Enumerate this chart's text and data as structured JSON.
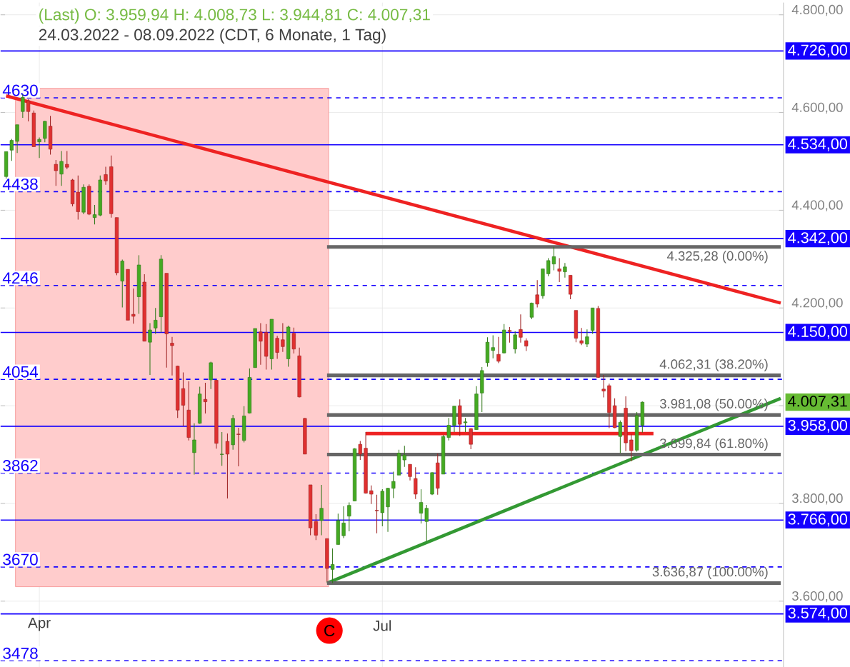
{
  "chart_data": {
    "type": "candlestick",
    "title": "(Last)  O: 3.959,94  H: 4.008,73  L: 3.944,81  C: 4.007,31",
    "subtitle": "24.03.2022 - 08.09.2022   (CDT, 6 Monate, 1 Tag)",
    "categories": [
      null,
      null,
      null,
      null,
      null,
      null,
      "Apr",
      null,
      null,
      null,
      null,
      null,
      null,
      null,
      null,
      null,
      null,
      null,
      null,
      null,
      null,
      null,
      null,
      null,
      null,
      null,
      null,
      null,
      null,
      null,
      null,
      null,
      null,
      null,
      null,
      null,
      null,
      null,
      null,
      null,
      null,
      null,
      null,
      null,
      null,
      null,
      null,
      null,
      null,
      null,
      null,
      null,
      null,
      null,
      null,
      null,
      null,
      null,
      null,
      null,
      null,
      null,
      null,
      null,
      null,
      null,
      null,
      null,
      "Jul",
      null,
      null,
      null,
      null,
      null,
      null,
      null,
      null,
      null,
      null,
      null,
      null,
      null,
      null,
      null,
      null,
      null,
      null,
      null,
      null,
      null,
      null,
      null,
      null,
      null,
      null,
      null,
      null,
      null,
      null,
      null,
      null,
      null,
      null,
      null,
      null,
      null,
      null,
      null,
      null,
      null,
      null,
      null,
      null,
      null,
      null,
      null,
      null,
      null,
      null,
      null,
      null,
      null,
      null,
      null,
      null,
      null,
      null,
      null,
      null,
      null,
      null,
      null,
      null,
      null,
      null,
      null,
      null,
      null,
      null,
      null,
      null
    ],
    "ohlc": [
      [
        4469,
        4520,
        4465,
        4520
      ],
      [
        4523,
        4546,
        4501,
        4543
      ],
      [
        4541,
        4575,
        4517,
        4575
      ],
      [
        4602,
        4637,
        4589,
        4631
      ],
      [
        4624,
        4627,
        4582,
        4602
      ],
      [
        4599,
        4604,
        4530,
        4530
      ],
      [
        4540,
        4549,
        4507,
        4545
      ],
      [
        4547,
        4583,
        4539,
        4582
      ],
      [
        4572,
        4593,
        4514,
        4525
      ],
      [
        4494,
        4503,
        4450,
        4481
      ],
      [
        4474,
        4521,
        4450,
        4500
      ],
      [
        4494,
        4521,
        4484,
        4488
      ],
      [
        4462,
        4464,
        4408,
        4413
      ],
      [
        4437,
        4471,
        4381,
        4397
      ],
      [
        4396,
        4453,
        4392,
        4447
      ],
      [
        4449,
        4453,
        4390,
        4392
      ],
      [
        4385,
        4411,
        4371,
        4391
      ],
      [
        4390,
        4471,
        4388,
        4462
      ],
      [
        4473,
        4489,
        4452,
        4460
      ],
      [
        4489,
        4512,
        4385,
        4393
      ],
      [
        4385,
        4385,
        4267,
        4272
      ],
      [
        4255,
        4299,
        4201,
        4296
      ],
      [
        4279,
        4279,
        4175,
        4175
      ],
      [
        4187,
        4240,
        4168,
        4183
      ],
      [
        4223,
        4308,
        4188,
        4288
      ],
      [
        4253,
        4269,
        4132,
        4132
      ],
      [
        4130,
        4169,
        4063,
        4155
      ],
      [
        4159,
        4200,
        4147,
        4175
      ],
      [
        4182,
        4308,
        4150,
        4300
      ],
      [
        4271,
        4271,
        4078,
        4147
      ],
      [
        4128,
        4141,
        4062,
        4123
      ],
      [
        4081,
        4082,
        3975,
        3991
      ],
      [
        4035,
        4068,
        3958,
        4001
      ],
      [
        3991,
        4050,
        3929,
        3935
      ],
      [
        3904,
        3964,
        3859,
        3930
      ],
      [
        3964,
        4039,
        3963,
        4024
      ],
      [
        4013,
        4047,
        3984,
        4008
      ],
      [
        4053,
        4090,
        4034,
        4088
      ],
      [
        4052,
        4053,
        3912,
        3923
      ],
      [
        3900,
        3946,
        3877,
        3901
      ],
      [
        3927,
        3943,
        3810,
        3901
      ],
      [
        3920,
        3981,
        3910,
        3974
      ],
      [
        3942,
        3955,
        3876,
        3941
      ],
      [
        3929,
        3999,
        3925,
        3979
      ],
      [
        3985,
        4076,
        3984,
        4058
      ],
      [
        4078,
        4158,
        4078,
        4158
      ],
      [
        4151,
        4169,
        4084,
        4132
      ],
      [
        4150,
        4167,
        4074,
        4101
      ],
      [
        4096,
        4177,
        4074,
        4177
      ],
      [
        4138,
        4143,
        4096,
        4109
      ],
      [
        4135,
        4169,
        4110,
        4121
      ],
      [
        4096,
        4164,
        4080,
        4161
      ],
      [
        4148,
        4160,
        4107,
        4116
      ],
      [
        4102,
        4119,
        4017,
        4018
      ],
      [
        3974,
        3975,
        3901,
        3901
      ],
      [
        3838,
        3838,
        3735,
        3750
      ],
      [
        3763,
        3778,
        3725,
        3735
      ],
      [
        3765,
        3838,
        3735,
        3790
      ],
      [
        3728,
        3728,
        3640,
        3667
      ],
      [
        3665,
        3708,
        3637,
        3675
      ],
      [
        3716,
        3779,
        3716,
        3765
      ],
      [
        3734,
        3794,
        3729,
        3760
      ],
      [
        3774,
        3802,
        3743,
        3796
      ],
      [
        3805,
        3913,
        3805,
        3912
      ],
      [
        3921,
        3928,
        3889,
        3901
      ],
      [
        3913,
        3946,
        3820,
        3821
      ],
      [
        3826,
        3837,
        3799,
        3819
      ],
      [
        3786,
        3818,
        3739,
        3785
      ],
      [
        3781,
        3829,
        3753,
        3825
      ],
      [
        3793,
        3832,
        3742,
        3831
      ],
      [
        3831,
        3865,
        3811,
        3845
      ],
      [
        3858,
        3910,
        3858,
        3903
      ],
      [
        3889,
        3918,
        3875,
        3899
      ],
      [
        3880,
        3880,
        3847,
        3855
      ],
      [
        3851,
        3874,
        3809,
        3819
      ],
      [
        3780,
        3829,
        3759,
        3802
      ],
      [
        3763,
        3797,
        3722,
        3790
      ],
      [
        3819,
        3864,
        3817,
        3863
      ],
      [
        3883,
        3902,
        3818,
        3831
      ],
      [
        3860,
        3940,
        3860,
        3937
      ],
      [
        3935,
        3975,
        3929,
        3960
      ],
      [
        3960,
        3999,
        3946,
        3999
      ],
      [
        4000,
        4013,
        3938,
        3962
      ],
      [
        3965,
        3975,
        3946,
        3967
      ],
      [
        3953,
        3954,
        3911,
        3921
      ],
      [
        3951,
        4040,
        3951,
        4024
      ],
      [
        4026,
        4079,
        3987,
        4072
      ],
      [
        4088,
        4140,
        4080,
        4130
      ],
      [
        4113,
        4144,
        4097,
        4119
      ],
      [
        4105,
        4141,
        4087,
        4091
      ],
      [
        4108,
        4167,
        4107,
        4155
      ],
      [
        4154,
        4161,
        4129,
        4152
      ],
      [
        4116,
        4152,
        4107,
        4145
      ],
      [
        4156,
        4187,
        4129,
        4140
      ],
      [
        4133,
        4138,
        4112,
        4122
      ],
      [
        4181,
        4211,
        4177,
        4210
      ],
      [
        4227,
        4257,
        4201,
        4208
      ],
      [
        4225,
        4280,
        4219,
        4280
      ],
      [
        4270,
        4302,
        4265,
        4297
      ],
      [
        4290,
        4325,
        4277,
        4305
      ],
      [
        4280,
        4302,
        4253,
        4275
      ],
      [
        4274,
        4292,
        4262,
        4284
      ],
      [
        4267,
        4267,
        4218,
        4228
      ],
      [
        4195,
        4195,
        4130,
        4138
      ],
      [
        4133,
        4159,
        4124,
        4128
      ],
      [
        4126,
        4156,
        4120,
        4141
      ],
      [
        4154,
        4200,
        4147,
        4200
      ],
      [
        4199,
        4204,
        4057,
        4058
      ],
      [
        4034,
        4063,
        4017,
        4030
      ],
      [
        4041,
        4045,
        3954,
        3986
      ],
      [
        4000,
        4015,
        3954,
        3955
      ],
      [
        3937,
        3970,
        3903,
        3966
      ],
      [
        3995,
        4019,
        3907,
        3924
      ],
      [
        3930,
        3942,
        3886,
        3908
      ],
      [
        3909,
        3987,
        3906,
        3980
      ],
      [
        3959.94,
        4008.73,
        3944.81,
        4007.31
      ],
      null,
      null,
      null,
      null,
      null,
      null,
      null,
      null,
      null,
      null,
      null,
      null,
      null,
      null,
      null,
      null,
      null,
      null,
      null,
      null,
      null,
      null,
      null,
      null,
      null
    ],
    "series": [
      {
        "type": "line",
        "color": "#ee2222",
        "values": [
          4634,
          null,
          null,
          null,
          null,
          null,
          null,
          null,
          null,
          null,
          null,
          null,
          null,
          null,
          null,
          null,
          null,
          null,
          null,
          null,
          null,
          null,
          null,
          null,
          null,
          null,
          null,
          null,
          null,
          null,
          null,
          null,
          null,
          null,
          null,
          null,
          null,
          null,
          null,
          null,
          null,
          null,
          null,
          null,
          null,
          null,
          null,
          null,
          null,
          null,
          null,
          null,
          null,
          null,
          null,
          null,
          null,
          null,
          null,
          null,
          null,
          null,
          null,
          null,
          null,
          null,
          null,
          null,
          null,
          null,
          null,
          null,
          null,
          null,
          null,
          null,
          null,
          null,
          null,
          null,
          null,
          null,
          null,
          null,
          null,
          null,
          null,
          null,
          null,
          null,
          null,
          null,
          null,
          null,
          null,
          null,
          null,
          null,
          null,
          null,
          null,
          null,
          null,
          null,
          null,
          null,
          null,
          null,
          null,
          null,
          null,
          null,
          null,
          null,
          null,
          null,
          null,
          null,
          null,
          null,
          null,
          null,
          null,
          null,
          null,
          null,
          null,
          null,
          null,
          null,
          null,
          null,
          null,
          null,
          null,
          null,
          null,
          null,
          null,
          null,
          4210
        ]
      },
      {
        "type": "line",
        "color": "#339933",
        "values": [
          null,
          null,
          null,
          null,
          null,
          null,
          null,
          null,
          null,
          null,
          null,
          null,
          null,
          null,
          null,
          null,
          null,
          null,
          null,
          null,
          null,
          null,
          null,
          null,
          null,
          null,
          null,
          null,
          null,
          null,
          null,
          null,
          null,
          null,
          null,
          null,
          null,
          null,
          null,
          null,
          null,
          null,
          null,
          null,
          null,
          null,
          null,
          null,
          null,
          null,
          null,
          null,
          null,
          null,
          null,
          null,
          null,
          null,
          3637,
          null,
          null,
          null,
          null,
          null,
          null,
          null,
          null,
          null,
          null,
          null,
          null,
          null,
          null,
          null,
          null,
          null,
          null,
          null,
          null,
          null,
          null,
          null,
          null,
          null,
          null,
          null,
          null,
          null,
          null,
          null,
          null,
          null,
          null,
          null,
          null,
          null,
          null,
          null,
          null,
          null,
          null,
          null,
          null,
          null,
          null,
          null,
          null,
          null,
          null,
          null,
          null,
          null,
          null,
          null,
          null,
          null,
          null,
          null,
          null,
          null,
          null,
          null,
          null,
          null,
          null,
          null,
          null,
          null,
          null,
          null,
          null,
          null,
          null,
          null,
          null,
          null,
          null,
          null,
          null,
          null,
          4015
        ]
      },
      {
        "type": "line",
        "color": "#ee2222",
        "values": [
          null,
          null,
          null,
          null,
          null,
          null,
          null,
          null,
          null,
          null,
          null,
          null,
          null,
          null,
          null,
          null,
          null,
          null,
          null,
          null,
          null,
          null,
          null,
          null,
          null,
          null,
          null,
          null,
          null,
          null,
          null,
          null,
          null,
          null,
          null,
          null,
          null,
          null,
          null,
          null,
          null,
          null,
          null,
          null,
          null,
          null,
          null,
          null,
          null,
          null,
          null,
          null,
          null,
          null,
          null,
          null,
          null,
          null,
          null,
          null,
          null,
          null,
          null,
          null,
          null,
          3943,
          null,
          null,
          null,
          null,
          null,
          null,
          null,
          null,
          null,
          null,
          null,
          null,
          null,
          null,
          null,
          null,
          null,
          null,
          null,
          null,
          null,
          null,
          null,
          null,
          null,
          null,
          null,
          null,
          null,
          null,
          null,
          null,
          null,
          null,
          null,
          null,
          null,
          null,
          null,
          null,
          null,
          null,
          null,
          null,
          null,
          null,
          null,
          null,
          null,
          null,
          null,
          3943,
          null,
          null,
          null,
          null,
          null,
          null,
          null,
          null,
          null,
          null,
          null,
          null,
          null,
          null,
          null,
          null,
          null,
          null,
          null,
          null,
          null,
          null,
          null
        ]
      },
      {
        "type": "line",
        "color": "#666666",
        "name": "4.325,28 (0.00%)",
        "values": [
          null,
          null,
          null,
          null,
          null,
          null,
          null,
          null,
          null,
          null,
          null,
          null,
          null,
          null,
          null,
          null,
          null,
          null,
          null,
          null,
          null,
          null,
          null,
          null,
          null,
          null,
          null,
          null,
          null,
          null,
          null,
          null,
          null,
          null,
          null,
          null,
          null,
          null,
          null,
          null,
          null,
          null,
          null,
          null,
          null,
          null,
          null,
          null,
          null,
          null,
          null,
          null,
          null,
          null,
          null,
          null,
          null,
          null,
          4325,
          null,
          null,
          null,
          null,
          null,
          null,
          null,
          null,
          null,
          null,
          null,
          null,
          null,
          null,
          null,
          null,
          null,
          null,
          null,
          null,
          null,
          null,
          null,
          null,
          null,
          null,
          null,
          null,
          null,
          null,
          null,
          null,
          null,
          null,
          null,
          null,
          null,
          null,
          null,
          null,
          null,
          null,
          null,
          null,
          null,
          null,
          null,
          null,
          null,
          null,
          null,
          null,
          null,
          null,
          null,
          null,
          null,
          null,
          null,
          null,
          null,
          null,
          null,
          null,
          null,
          null,
          null,
          null,
          null,
          null,
          null,
          null,
          null,
          null,
          null,
          null,
          null,
          null,
          null,
          null,
          null,
          4325
        ]
      },
      {
        "type": "line",
        "color": "#666666",
        "name": "4.062,31 (38.20%)",
        "values": [
          null,
          null,
          null,
          null,
          null,
          null,
          null,
          null,
          null,
          null,
          null,
          null,
          null,
          null,
          null,
          null,
          null,
          null,
          null,
          null,
          null,
          null,
          null,
          null,
          null,
          null,
          null,
          null,
          null,
          null,
          null,
          null,
          null,
          null,
          null,
          null,
          null,
          null,
          null,
          null,
          null,
          null,
          null,
          null,
          null,
          null,
          null,
          null,
          null,
          null,
          null,
          null,
          null,
          null,
          null,
          null,
          null,
          null,
          4062,
          null,
          null,
          null,
          null,
          null,
          null,
          null,
          null,
          null,
          null,
          null,
          null,
          null,
          null,
          null,
          null,
          null,
          null,
          null,
          null,
          null,
          null,
          null,
          null,
          null,
          null,
          null,
          null,
          null,
          null,
          null,
          null,
          null,
          null,
          null,
          null,
          null,
          null,
          null,
          null,
          null,
          null,
          null,
          null,
          null,
          null,
          null,
          null,
          null,
          null,
          null,
          null,
          null,
          null,
          null,
          null,
          null,
          null,
          null,
          null,
          null,
          null,
          null,
          null,
          null,
          null,
          null,
          null,
          null,
          null,
          null,
          null,
          null,
          null,
          null,
          null,
          null,
          null,
          null,
          null,
          null,
          4062
        ]
      },
      {
        "type": "line",
        "color": "#666666",
        "name": "3.981,08 (50.00%)",
        "values": [
          null,
          null,
          null,
          null,
          null,
          null,
          null,
          null,
          null,
          null,
          null,
          null,
          null,
          null,
          null,
          null,
          null,
          null,
          null,
          null,
          null,
          null,
          null,
          null,
          null,
          null,
          null,
          null,
          null,
          null,
          null,
          null,
          null,
          null,
          null,
          null,
          null,
          null,
          null,
          null,
          null,
          null,
          null,
          null,
          null,
          null,
          null,
          null,
          null,
          null,
          null,
          null,
          null,
          null,
          null,
          null,
          null,
          null,
          3981,
          null,
          null,
          null,
          null,
          null,
          null,
          null,
          null,
          null,
          null,
          null,
          null,
          null,
          null,
          null,
          null,
          null,
          null,
          null,
          null,
          null,
          null,
          null,
          null,
          null,
          null,
          null,
          null,
          null,
          null,
          null,
          null,
          null,
          null,
          null,
          null,
          null,
          null,
          null,
          null,
          null,
          null,
          null,
          null,
          null,
          null,
          null,
          null,
          null,
          null,
          null,
          null,
          null,
          null,
          null,
          null,
          null,
          null,
          null,
          null,
          null,
          null,
          null,
          null,
          null,
          null,
          null,
          null,
          null,
          null,
          null,
          null,
          null,
          null,
          null,
          null,
          null,
          null,
          null,
          null,
          null,
          3981
        ]
      },
      {
        "type": "line",
        "color": "#666666",
        "name": "3.899,84 (61.80%)",
        "values": [
          null,
          null,
          null,
          null,
          null,
          null,
          null,
          null,
          null,
          null,
          null,
          null,
          null,
          null,
          null,
          null,
          null,
          null,
          null,
          null,
          null,
          null,
          null,
          null,
          null,
          null,
          null,
          null,
          null,
          null,
          null,
          null,
          null,
          null,
          null,
          null,
          null,
          null,
          null,
          null,
          null,
          null,
          null,
          null,
          null,
          null,
          null,
          null,
          null,
          null,
          null,
          null,
          null,
          null,
          null,
          null,
          null,
          null,
          3900,
          null,
          null,
          null,
          null,
          null,
          null,
          null,
          null,
          null,
          null,
          null,
          null,
          null,
          null,
          null,
          null,
          null,
          null,
          null,
          null,
          null,
          null,
          null,
          null,
          null,
          null,
          null,
          null,
          null,
          null,
          null,
          null,
          null,
          null,
          null,
          null,
          null,
          null,
          null,
          null,
          null,
          null,
          null,
          null,
          null,
          null,
          null,
          null,
          null,
          null,
          null,
          null,
          null,
          null,
          null,
          null,
          null,
          null,
          null,
          null,
          null,
          null,
          null,
          null,
          null,
          null,
          null,
          null,
          null,
          null,
          null,
          null,
          null,
          null,
          null,
          null,
          null,
          null,
          null,
          null,
          null,
          3900
        ]
      },
      {
        "type": "line",
        "color": "#666666",
        "name": "3.636,87 (100.00%)",
        "values": [
          null,
          null,
          null,
          null,
          null,
          null,
          null,
          null,
          null,
          null,
          null,
          null,
          null,
          null,
          null,
          null,
          null,
          null,
          null,
          null,
          null,
          null,
          null,
          null,
          null,
          null,
          null,
          null,
          null,
          null,
          null,
          null,
          null,
          null,
          null,
          null,
          null,
          null,
          null,
          null,
          null,
          null,
          null,
          null,
          null,
          null,
          null,
          null,
          null,
          null,
          null,
          null,
          null,
          null,
          null,
          null,
          null,
          null,
          3637,
          null,
          null,
          null,
          null,
          null,
          null,
          null,
          null,
          null,
          null,
          null,
          null,
          null,
          null,
          null,
          null,
          null,
          null,
          null,
          null,
          null,
          null,
          null,
          null,
          null,
          null,
          null,
          null,
          null,
          null,
          null,
          null,
          null,
          null,
          null,
          null,
          null,
          null,
          null,
          null,
          null,
          null,
          null,
          null,
          null,
          null,
          null,
          null,
          null,
          null,
          null,
          null,
          null,
          null,
          null,
          null,
          null,
          null,
          null,
          null,
          null,
          null,
          null,
          null,
          null,
          null,
          null,
          null,
          null,
          null,
          null,
          null,
          null,
          null,
          null,
          null,
          null,
          null,
          null,
          null,
          null,
          3637
        ]
      }
    ],
    "ylim": [
      3465,
      4825
    ],
    "yticks": [
      {
        "value": 3600,
        "label": "3.600,00"
      },
      {
        "value": 3800,
        "label": "3.800,00"
      },
      {
        "value": 4000,
        "label": null
      },
      {
        "value": 4200,
        "label": "4.200,00"
      },
      {
        "value": 4400,
        "label": "4.400,00"
      },
      {
        "value": 4600,
        "label": "4.600,00"
      },
      {
        "value": 4800,
        "label": "4.800,00"
      }
    ],
    "grid": true,
    "ref_lines": [
      {
        "axis": "y",
        "value": 4726,
        "label": "4.726,00",
        "color": "#1400ff",
        "line_style": "solid"
      },
      {
        "axis": "y",
        "value": 4534,
        "label": "4.534,00",
        "color": "#1400ff",
        "line_style": "solid"
      },
      {
        "axis": "y",
        "value": 4342,
        "label": "4.342,00",
        "color": "#1400ff",
        "line_style": "solid"
      },
      {
        "axis": "y",
        "value": 4150,
        "label": "4.150,00",
        "color": "#1400ff",
        "line_style": "solid"
      },
      {
        "axis": "y",
        "value": 3958,
        "label": "3.958,00",
        "color": "#1400ff",
        "line_style": "solid"
      },
      {
        "axis": "y",
        "value": 3766,
        "label": "3.766,00",
        "color": "#1400ff",
        "line_style": "solid"
      },
      {
        "axis": "y",
        "value": 3574,
        "label": "3.574,00",
        "color": "#1400ff",
        "line_style": "solid"
      },
      {
        "axis": "y",
        "value": 4630,
        "label": "4630",
        "color": "#1400ff",
        "line_style": "dashed"
      },
      {
        "axis": "y",
        "value": 4438,
        "label": "4438",
        "color": "#1400ff",
        "line_style": "dashed"
      },
      {
        "axis": "y",
        "value": 4246,
        "label": "4246",
        "color": "#1400ff",
        "line_style": "dashed"
      },
      {
        "axis": "y",
        "value": 4054,
        "label": "4054",
        "color": "#1400ff",
        "line_style": "dashed"
      },
      {
        "axis": "y",
        "value": 3862,
        "label": "3862",
        "color": "#1400ff",
        "line_style": "dashed"
      },
      {
        "axis": "y",
        "value": 3670,
        "label": "3670",
        "color": "#1400ff",
        "line_style": "dashed"
      },
      {
        "axis": "y",
        "value": 3478,
        "label": "3478",
        "color": "#1400ff",
        "line_style": "dashed"
      }
    ],
    "annotations": [
      "C",
      "4.007,31"
    ]
  }
}
